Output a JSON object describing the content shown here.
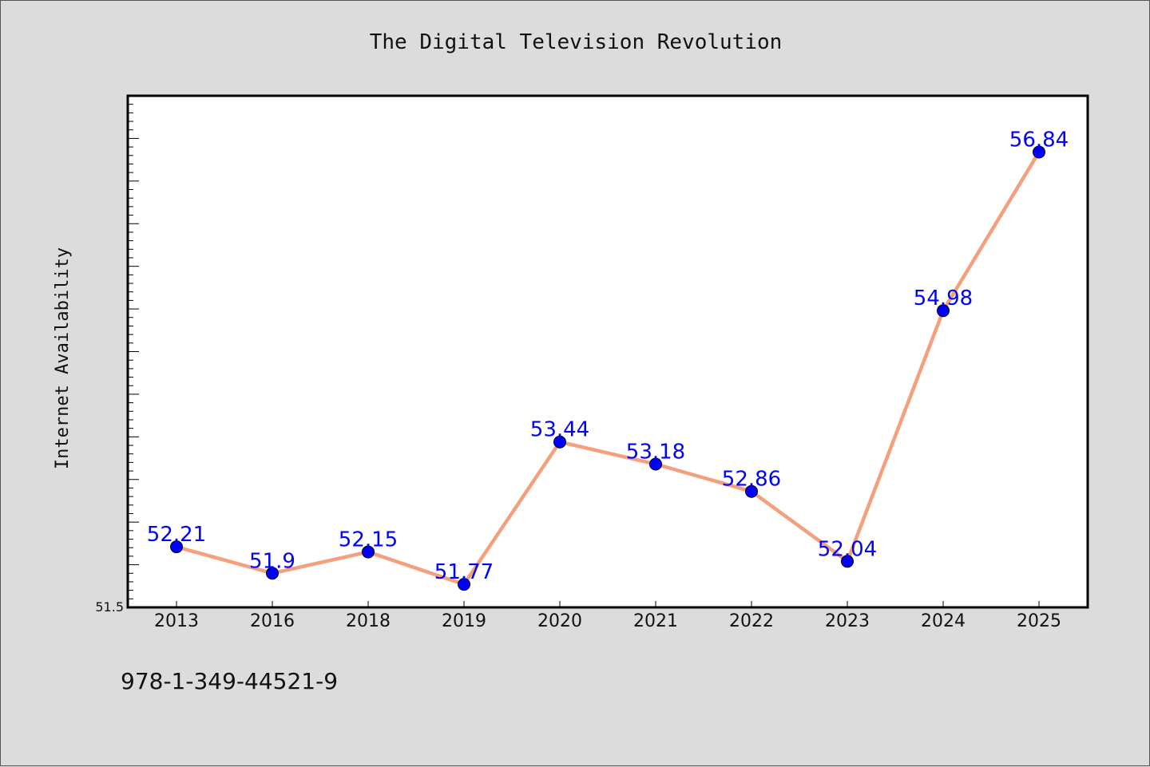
{
  "chart_data": {
    "type": "line",
    "title": "The Digital Television Revolution",
    "xlabel": "",
    "ylabel": "Internet Availability",
    "categories": [
      "2013",
      "2016",
      "2018",
      "2019",
      "2020",
      "2021",
      "2022",
      "2023",
      "2024",
      "2025"
    ],
    "series": [
      {
        "values": [
          52.21,
          51.9,
          52.15,
          51.77,
          53.44,
          53.18,
          52.86,
          52.04,
          54.98,
          56.84
        ],
        "labels": [
          "52.21",
          "51.9",
          "52.15",
          "51.77",
          "53.44",
          "53.18",
          "52.86",
          "52.04",
          "54.98",
          "56.84"
        ],
        "line_color": "#f4a07f",
        "marker_color": "#0000ff"
      }
    ],
    "ylim": [
      51.5,
      57.5
    ],
    "yticks_labeled": [
      "51.5"
    ],
    "grid": false,
    "legend": "none"
  },
  "footnote": "978-1-349-44521-9",
  "colors": {
    "background": "#dcdcdc",
    "plot_area": "#ffffff",
    "line": "#f4a07f",
    "marker": "#0000ff",
    "data_label": "#0000ff"
  }
}
